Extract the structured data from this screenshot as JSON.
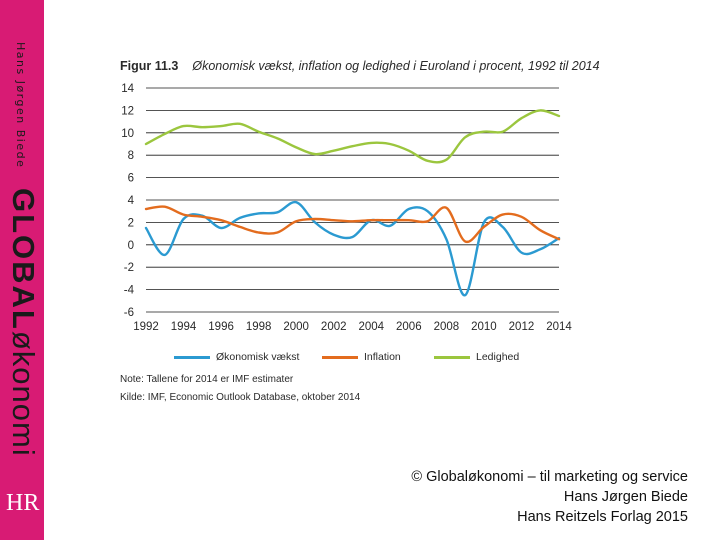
{
  "sidebar": {
    "author_vertical": "Hans Jørgen Biede",
    "brand_bold": "GLOBAL",
    "brand_regular": "økonomi",
    "logo_text": "HR"
  },
  "figure": {
    "number": "Figur 11.3",
    "title": "Økonomisk vækst, inflation og ledighed i Euroland i procent, 1992 til 2014",
    "note": "Note: Tallene for 2014 er IMF estimater",
    "source": "Kilde: IMF, Economic Outlook Database, oktober 2014"
  },
  "credits": {
    "line1": "© Globaløkonomi – til marketing og service",
    "line2": "Hans Jørgen Biede",
    "line3": "Hans Reitzels Forlag 2015"
  },
  "colors": {
    "sidebar": "#d81b74",
    "growth": "#2b9ad1",
    "inflation": "#e36c1e",
    "unemployment": "#9bc63e",
    "grid": "#1a1a1a"
  },
  "chart_data": {
    "type": "line",
    "title": "Økonomisk vækst, inflation og ledighed i Euroland i procent, 1992 til 2014",
    "xlabel": "",
    "ylabel": "",
    "ylim": [
      -6,
      14
    ],
    "yticks": [
      "14",
      "12",
      "10",
      "8",
      "6",
      "4",
      "2",
      "0",
      "-2",
      "-4",
      "-6"
    ],
    "xticks": [
      "1992",
      "1994",
      "1996",
      "1998",
      "2000",
      "2002",
      "2004",
      "2006",
      "2008",
      "2010",
      "2012",
      "2014"
    ],
    "grid": true,
    "legend_position": "bottom",
    "x": [
      1992,
      1993,
      1994,
      1995,
      1996,
      1997,
      1998,
      1999,
      2000,
      2001,
      2002,
      2003,
      2004,
      2005,
      2006,
      2007,
      2008,
      2009,
      2010,
      2011,
      2012,
      2013,
      2014
    ],
    "series": [
      {
        "name": "Økonomisk vækst",
        "color": "#2b9ad1",
        "values": [
          1.5,
          -0.9,
          2.3,
          2.6,
          1.5,
          2.4,
          2.8,
          2.9,
          3.8,
          2.0,
          0.9,
          0.7,
          2.2,
          1.7,
          3.2,
          3.0,
          0.5,
          -4.5,
          2.0,
          1.6,
          -0.7,
          -0.4,
          0.6
        ]
      },
      {
        "name": "Inflation",
        "color": "#e36c1e",
        "values": [
          3.2,
          3.4,
          2.7,
          2.5,
          2.2,
          1.6,
          1.1,
          1.1,
          2.1,
          2.3,
          2.2,
          2.1,
          2.2,
          2.2,
          2.2,
          2.1,
          3.3,
          0.3,
          1.6,
          2.7,
          2.5,
          1.3,
          0.5
        ]
      },
      {
        "name": "Ledighed",
        "color": "#9bc63e",
        "values": [
          9.0,
          9.9,
          10.6,
          10.5,
          10.6,
          10.8,
          10.1,
          9.5,
          8.7,
          8.1,
          8.4,
          8.8,
          9.1,
          9.0,
          8.4,
          7.5,
          7.6,
          9.6,
          10.1,
          10.1,
          11.3,
          12.0,
          11.5
        ]
      }
    ]
  }
}
